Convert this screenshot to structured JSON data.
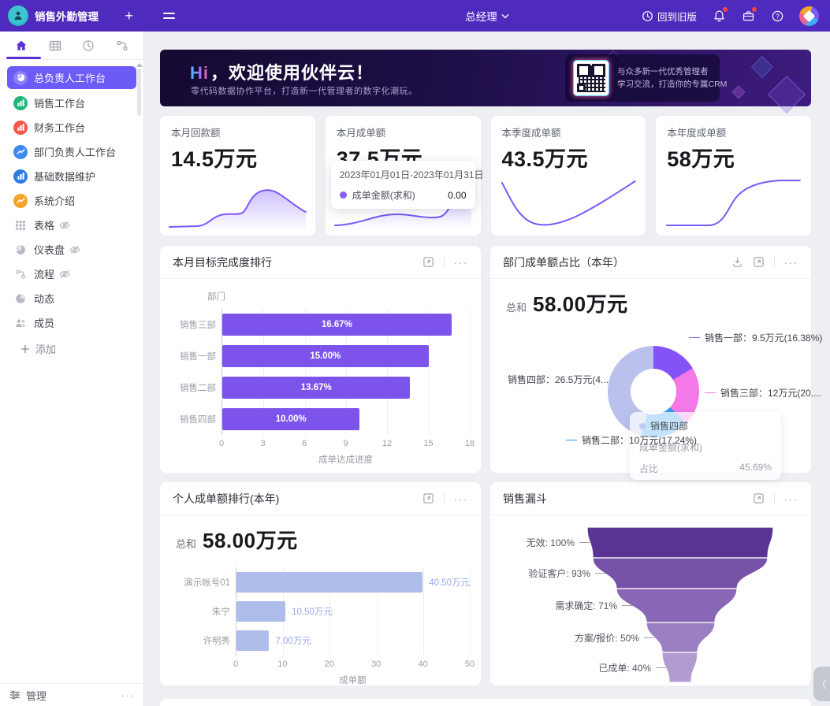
{
  "topbar": {
    "app_title": "销售外勤管理",
    "add_button": "+",
    "role_selector": "总经理",
    "back_label": "回到旧版",
    "right_icons": [
      "history-icon",
      "bell-icon",
      "briefcase-icon",
      "help-icon",
      "user-avatar"
    ]
  },
  "sidebar": {
    "tabs": [
      "home-icon",
      "table-icon",
      "history-icon",
      "flow-icon"
    ],
    "items": [
      {
        "label": "总负责人工作台",
        "icon": "pie-chart",
        "bg": "#6C5BF6",
        "active": true
      },
      {
        "label": "销售工作台",
        "icon": "bar-chart",
        "bg": "#1EB879"
      },
      {
        "label": "财务工作台",
        "icon": "bar-chart",
        "bg": "#F2574C"
      },
      {
        "label": "部门负责人工作台",
        "icon": "line-chart",
        "bg": "#3D8BF2"
      },
      {
        "label": "基础数据维护",
        "icon": "bar-chart",
        "bg": "#2E7BE0"
      },
      {
        "label": "系统介绍",
        "icon": "line-chart",
        "bg": "#F6A32B"
      },
      {
        "label": "表格",
        "icon": "grid-icon",
        "gray": true,
        "hidden_eye": true
      },
      {
        "label": "仪表盘",
        "icon": "dashboard-icon",
        "gray": true,
        "hidden_eye": true
      },
      {
        "label": "流程",
        "icon": "flow-icon",
        "gray": true,
        "hidden_eye": true
      },
      {
        "label": "动态",
        "icon": "activity-icon",
        "gray": true
      },
      {
        "label": "成员",
        "icon": "members-icon",
        "gray": true
      }
    ],
    "add_label": "添加",
    "manage_label": "管理"
  },
  "banner": {
    "hi": "Hi",
    "title": "，欢迎使用伙伴云！",
    "subtitle": "零代码数据协作平台，打造新一代管理者的数字化潮玩。",
    "qr_line1": "与众多新一代优秀管理者",
    "qr_line2": "学习交流，打造你的专属CRM"
  },
  "accent_color": "#7C57FA",
  "stat_cards": [
    {
      "label": "本月回款额",
      "value": "14.5万元",
      "spark": "area1"
    },
    {
      "label": "本月成单额",
      "value": "37.5万元",
      "spark": "area2",
      "tooltip": {
        "date_range": "2023年01月01日-2023年01月31日",
        "series": "成单金额(求和)",
        "value": "0.00",
        "dot_color": "#8B5CF6"
      }
    },
    {
      "label": "本季度成单额",
      "value": "43.5万元",
      "spark": "line1"
    },
    {
      "label": "本年度成单额",
      "value": "58万元",
      "spark": "line2"
    }
  ],
  "chart_data": [
    {
      "type": "bar",
      "title": "本月目标完成度排行",
      "orientation": "horizontal",
      "categories": [
        "销售三部",
        "销售一部",
        "销售二部",
        "销售四部"
      ],
      "values": [
        16.67,
        15.0,
        13.67,
        10.0
      ],
      "value_labels": [
        "16.67%",
        "15.00%",
        "13.67%",
        "10.00%"
      ],
      "xlabel": "成单达成进度",
      "ylabel": "部门",
      "xlim": [
        0,
        18
      ],
      "xticks": [
        0,
        3,
        6,
        9,
        12,
        15,
        18
      ],
      "bar_color": "#7C54EC",
      "grid": true
    },
    {
      "type": "pie",
      "donut": true,
      "title": "部门成单额占比（本年）",
      "total_label": "总和",
      "total_value": "58.00万元",
      "segments": [
        {
          "name": "销售一部",
          "label": "销售一部：9.5万元(16.38%)",
          "value_wan": 9.5,
          "pct": 16.38,
          "color": "#8452F5"
        },
        {
          "name": "销售三部",
          "label": "销售三部：12万元(20....",
          "value_wan": 12,
          "pct": 20.69,
          "color": "#F478E8"
        },
        {
          "name": "销售二部",
          "label": "销售二部：10万元(17.24%)",
          "value_wan": 10,
          "pct": 17.24,
          "color": "#2E97EC"
        },
        {
          "name": "销售四部",
          "label": "销售四部：26.5万元(4...",
          "value_wan": 26.5,
          "pct": 45.69,
          "color": "#B9C1EC"
        }
      ],
      "tooltip": {
        "title": "销售四部",
        "row1_label": "成单金额(求和)",
        "row2_label": "占比",
        "row2_value": "45.69%"
      }
    },
    {
      "type": "bar",
      "title": "个人成单额排行(本年)",
      "total_label": "总和",
      "total_value": "58.00万元",
      "orientation": "horizontal",
      "categories": [
        "演示帐号01",
        "朱宁",
        "许明秀"
      ],
      "values": [
        40.5,
        10.5,
        7.0
      ],
      "value_labels": [
        "40.50万元",
        "10.50万元",
        "7.00万元"
      ],
      "xlabel": "成单额",
      "xlim": [
        0,
        50
      ],
      "xticks": [
        0,
        10,
        20,
        30,
        40,
        50
      ],
      "bar_color": "#AEBDEA",
      "label_color": "#96A9E6",
      "grid": true
    },
    {
      "type": "funnel",
      "title": "销售漏斗",
      "stages": [
        {
          "label": "无效: 100%",
          "pct": 100,
          "color": "#5A3492"
        },
        {
          "label": "验证客户: 93%",
          "pct": 93,
          "color": "#7851A9"
        },
        {
          "label": "需求确定: 71%",
          "pct": 71,
          "color": "#8A67B6"
        },
        {
          "label": "方案/报价: 50%",
          "pct": 50,
          "color": "#9B7FC3"
        },
        {
          "label": "已成单: 40%",
          "pct": 40,
          "color": "#B19BD1"
        }
      ]
    }
  ],
  "misc": {
    "collapse_glyph": "〈"
  }
}
